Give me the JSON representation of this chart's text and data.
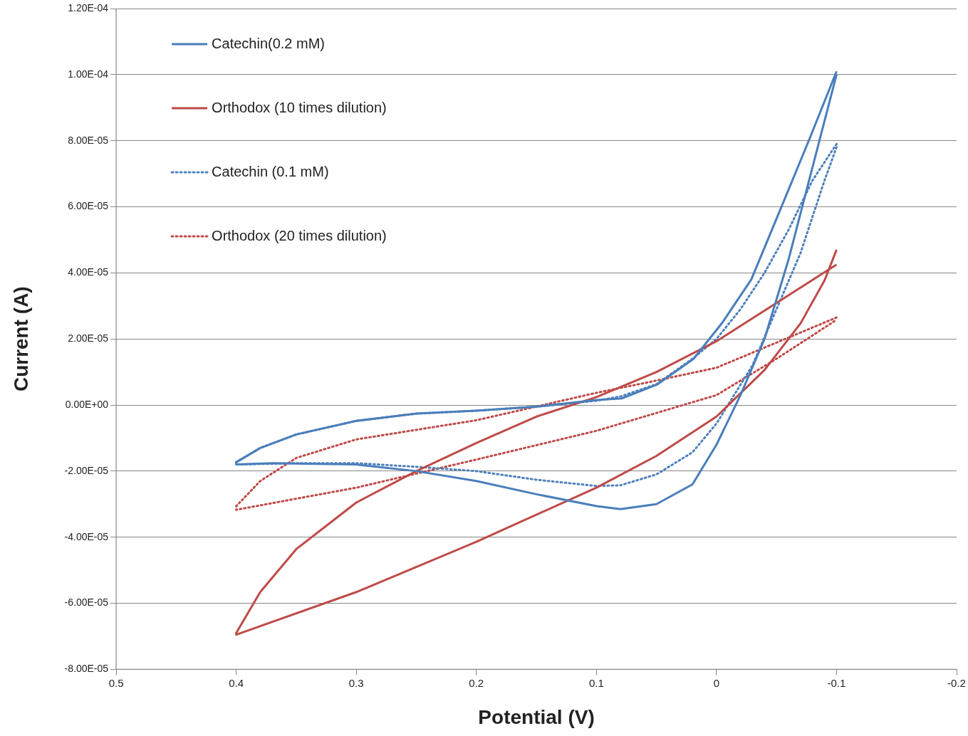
{
  "chart_data": {
    "type": "line",
    "xlabel": "Potential (V)",
    "ylabel": "Current (A)",
    "xlim": [
      0.5,
      -0.2
    ],
    "xticks": [
      0.5,
      0.4,
      0.3,
      0.2,
      0.1,
      0,
      -0.1,
      -0.2
    ],
    "ylim": [
      -8e-05,
      0.00012
    ],
    "yticks": [
      {
        "value": -8e-05,
        "label": "-8.00E-05"
      },
      {
        "value": -6e-05,
        "label": "-6.00E-05"
      },
      {
        "value": -4e-05,
        "label": "-4.00E-05"
      },
      {
        "value": -2e-05,
        "label": "-2.00E-05"
      },
      {
        "value": 0,
        "label": "0.00E+00"
      },
      {
        "value": 2e-05,
        "label": "2.00E-05"
      },
      {
        "value": 4e-05,
        "label": "4.00E-05"
      },
      {
        "value": 6e-05,
        "label": "6.00E-05"
      },
      {
        "value": 8e-05,
        "label": "8.00E-05"
      },
      {
        "value": 0.0001,
        "label": "1.00E-04"
      },
      {
        "value": 0.00012,
        "label": "1.20E-04"
      }
    ],
    "grid": "y",
    "legend": "top left",
    "marker": "none",
    "series": [
      {
        "name": "Catechin(0.2 mM)",
        "color": "#4a7ebb",
        "line_style": "solid",
        "x": [
          -0.1,
          -0.078,
          -0.053,
          -0.029,
          -0.005,
          0.019,
          0.049,
          0.079,
          0.1,
          0.15,
          0.2,
          0.25,
          0.3,
          0.35,
          0.38,
          0.4,
          0.4,
          0.37,
          0.3,
          0.25,
          0.2,
          0.15,
          0.1,
          0.08,
          0.05,
          0.02,
          0,
          -0.02,
          -0.04,
          -0.06,
          -0.08,
          -0.1
        ],
        "values": [
          0.000101,
          8.1e-05,
          5.9e-05,
          3.8e-05,
          2.5e-05,
          1.4e-05,
          6.3e-06,
          2e-06,
          1.5e-06,
          -5e-07,
          -1.7e-06,
          -2.6e-06,
          -4.8e-06,
          -8.9e-06,
          -1.3e-05,
          -1.73e-05,
          -1.8e-05,
          -1.76e-05,
          -1.8e-05,
          -2e-05,
          -2.3e-05,
          -2.7e-05,
          -3.06e-05,
          -3.15e-05,
          -3e-05,
          -2.4e-05,
          -1.2e-05,
          3e-06,
          2e-05,
          4.4e-05,
          7.2e-05,
          0.0001
        ]
      },
      {
        "name": "Orthodox (10 times dilution)",
        "color": "#be4b48",
        "line_style": "solid",
        "x": [
          -0.1,
          0,
          0.05,
          0.1,
          0.15,
          0.2,
          0.25,
          0.3,
          0.35,
          0.38,
          0.4,
          0.4,
          0.3,
          0.2,
          0.1,
          0.05,
          0,
          -0.04,
          -0.07,
          -0.09,
          -0.1
        ],
        "values": [
          4.25e-05,
          1.93e-05,
          1e-05,
          2.4e-06,
          -3.5e-06,
          -1.15e-05,
          -2e-05,
          -2.95e-05,
          -4.36e-05,
          -5.66e-05,
          -6.9e-05,
          -6.95e-05,
          -5.66e-05,
          -4.14e-05,
          -2.5e-05,
          -1.54e-05,
          -3.5e-06,
          1.06e-05,
          2.47e-05,
          3.77e-05,
          4.7e-05
        ]
      },
      {
        "name": "Catechin (0.1 mM)",
        "color": "#4f81bd",
        "line_style": "dotted",
        "x": [
          -0.1,
          -0.08,
          -0.06,
          -0.04,
          -0.02,
          0,
          0.02,
          0.05,
          0.08,
          0.1,
          0.15,
          0.2,
          0.25,
          0.3,
          0.35,
          0.38,
          0.4,
          0.4,
          0.35,
          0.3,
          0.25,
          0.2,
          0.15,
          0.1,
          0.08,
          0.05,
          0.02,
          0,
          -0.03,
          -0.05,
          -0.07,
          -0.09,
          -0.1
        ],
        "values": [
          7.9e-05,
          6.8e-05,
          5.3e-05,
          4e-05,
          2.9e-05,
          2e-05,
          1.4e-05,
          6.3e-06,
          2.6e-06,
          1.3e-06,
          -5e-07,
          -1.7e-06,
          -2.6e-06,
          -4.8e-06,
          -8.9e-06,
          -1.3e-05,
          -1.73e-05,
          -1.8e-05,
          -1.76e-05,
          -1.76e-05,
          -1.87e-05,
          -2e-05,
          -2.26e-05,
          -2.45e-05,
          -2.43e-05,
          -2.1e-05,
          -1.43e-05,
          -5.6e-06,
          1.2e-05,
          2.9e-05,
          4.6e-05,
          6.8e-05,
          7.8e-05
        ]
      },
      {
        "name": "Orthodox (20 times dilution)",
        "color": "#be4b48",
        "line_style": "dotted",
        "x": [
          -0.1,
          0,
          0.05,
          0.1,
          0.2,
          0.3,
          0.35,
          0.38,
          0.4,
          0.4,
          0.3,
          0.2,
          0.1,
          0,
          -0.05,
          -0.1
        ],
        "values": [
          2.65e-05,
          1.13e-05,
          7.4e-06,
          3.7e-06,
          -4.6e-06,
          -1.04e-05,
          -1.6e-05,
          -2.3e-05,
          -3.06e-05,
          -3.17e-05,
          -2.5e-05,
          -1.65e-05,
          -7.8e-06,
          3e-06,
          1.4e-05,
          2.58e-05
        ]
      }
    ]
  }
}
